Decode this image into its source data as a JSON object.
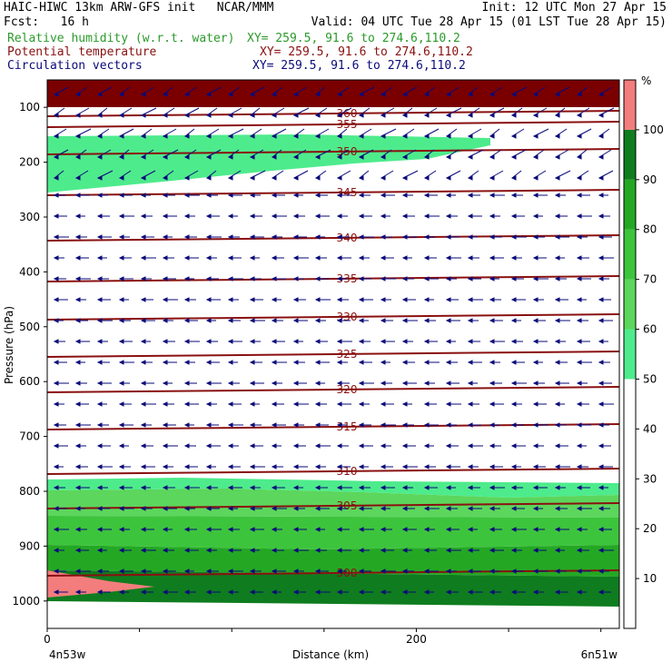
{
  "header": {
    "left1": "HAIC-HIWC 13km ARW-GFS init   NCAR/MMM",
    "right1": "Init: 12 UTC Mon 27 Apr 15",
    "left2": "Fcst:   16 h",
    "right2": "Valid: 04 UTC Tue 28 Apr 15 (01 LST Tue 28 Apr 15)",
    "field1_name": "Relative humidity (w.r.t. water)",
    "field1_xy": "XY= 259.5, 91.6 to 274.6,110.2",
    "field2_name": "Potential temperature",
    "field2_xy": "XY= 259.5, 91.6 to 274.6,110.2",
    "field3_name": "Circulation vectors",
    "field3_xy": "XY= 259.5, 91.6 to 274.6,110.2"
  },
  "colors": {
    "rh": "#2a9a2a",
    "theta": "#8a1010",
    "vectors": "#0a0a7a"
  },
  "chart_data": {
    "type": "heatmap",
    "xlabel": "Distance (km)",
    "ylabel": "Pressure (hPa)",
    "x_left_label": "4n53w",
    "x_right_label": "6n51w",
    "xlim": [
      0,
      310
    ],
    "ylim": [
      1050,
      50
    ],
    "xticks": [
      0,
      200
    ],
    "yticks": [
      100,
      200,
      300,
      400,
      500,
      600,
      700,
      800,
      900,
      1000
    ],
    "colorbar": {
      "unit": "%",
      "levels": [
        10,
        20,
        30,
        40,
        50,
        60,
        70,
        80,
        90,
        100
      ],
      "bands": [
        {
          "from": 0,
          "to": 50,
          "color": "#ffffff"
        },
        {
          "from": 50,
          "to": 60,
          "color": "#4eeb8c"
        },
        {
          "from": 60,
          "to": 70,
          "color": "#5cd65c"
        },
        {
          "from": 70,
          "to": 80,
          "color": "#3dc43d"
        },
        {
          "from": 80,
          "to": 90,
          "color": "#24a824"
        },
        {
          "from": 90,
          "to": 100,
          "color": "#0f7d1f"
        },
        {
          "from": 100,
          "to": 110,
          "color": "#f37d7d"
        }
      ]
    },
    "rh_regions": [
      {
        "level": "100-110",
        "description_color": "#7a0000"
      }
    ],
    "theta_isentropes": [
      {
        "value": 360,
        "label": "360"
      },
      {
        "value": 355,
        "label": "355"
      },
      {
        "value": 350,
        "label": "350"
      },
      {
        "value": 345,
        "label": "345"
      },
      {
        "value": 340,
        "label": "340"
      },
      {
        "value": 335,
        "label": "335"
      },
      {
        "value": 330,
        "label": "330"
      },
      {
        "value": 325,
        "label": "325"
      },
      {
        "value": 320,
        "label": "320"
      },
      {
        "value": 315,
        "label": "315"
      },
      {
        "value": 310,
        "label": "310"
      },
      {
        "value": 305,
        "label": "305"
      },
      {
        "value": 300,
        "label": "300"
      }
    ]
  }
}
